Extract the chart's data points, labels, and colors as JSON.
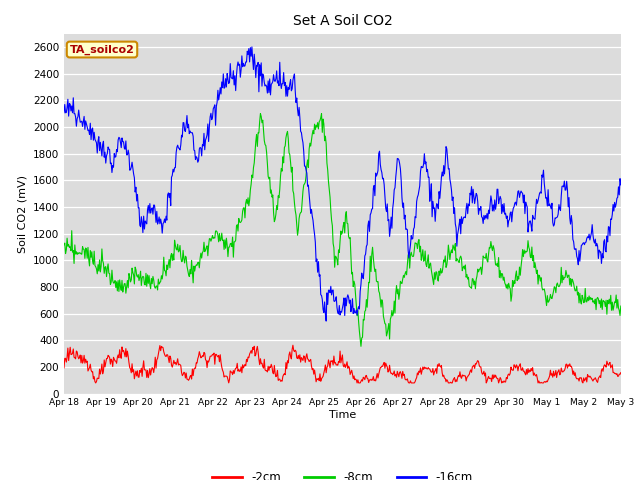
{
  "title": "Set A Soil CO2",
  "xlabel": "Time",
  "ylabel": "Soil CO2 (mV)",
  "ylim": [
    0,
    2700
  ],
  "yticks": [
    0,
    200,
    400,
    600,
    800,
    1000,
    1200,
    1400,
    1600,
    1800,
    2000,
    2200,
    2400,
    2600
  ],
  "xtick_labels": [
    "Apr 18",
    "Apr 19",
    "Apr 20",
    "Apr 21",
    "Apr 22",
    "Apr 23",
    "Apr 24",
    "Apr 25",
    "Apr 26",
    "Apr 27",
    "Apr 28",
    "Apr 29",
    "Apr 30",
    "May 1",
    "May 2",
    "May 3"
  ],
  "legend_labels": [
    "-2cm",
    "-8cm",
    "-16cm"
  ],
  "line_colors": [
    "#ff0000",
    "#00cc00",
    "#0000ff"
  ],
  "plot_bg": "#dcdcdc",
  "annotation_text": "TA_soilco2",
  "annotation_bg": "#ffffcc",
  "annotation_border": "#cc8800"
}
